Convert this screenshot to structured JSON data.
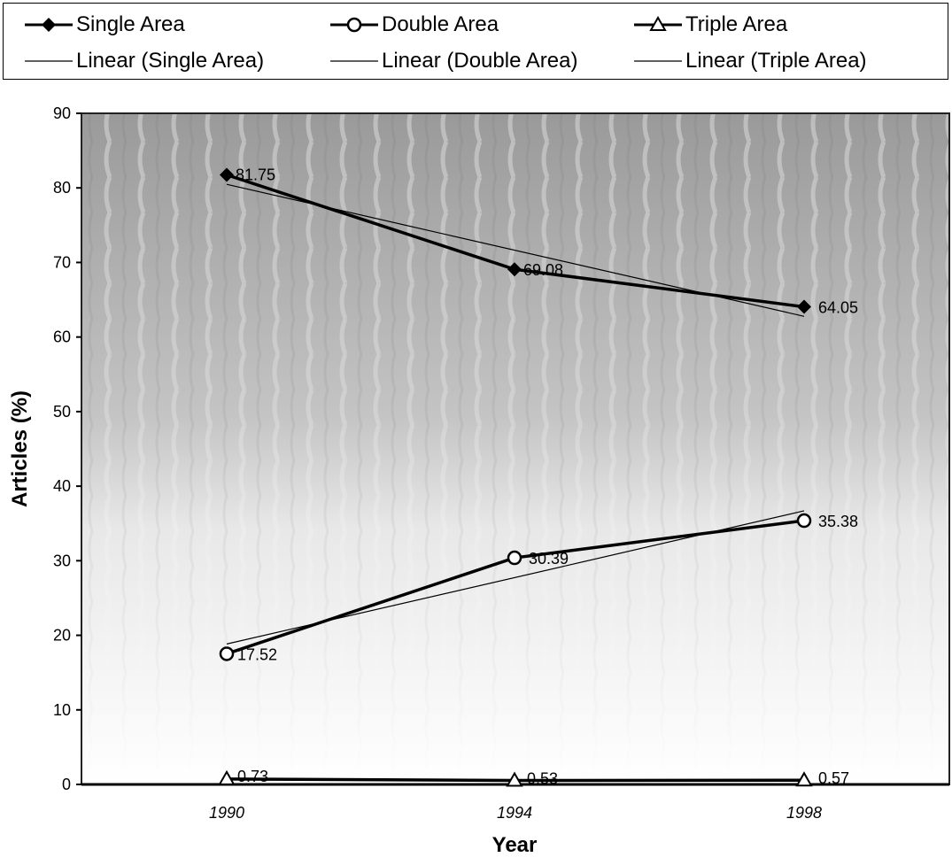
{
  "legend": {
    "items": [
      {
        "label": "Single Area",
        "marker": "diamond",
        "style": "series"
      },
      {
        "label": "Double Area",
        "marker": "circle",
        "style": "series"
      },
      {
        "label": "Triple Area",
        "marker": "triangle",
        "style": "series"
      },
      {
        "label": "Linear (Single Area)",
        "marker": "none",
        "style": "trend"
      },
      {
        "label": "Linear (Double Area)",
        "marker": "none",
        "style": "trend"
      },
      {
        "label": "Linear (Triple Area)",
        "marker": "none",
        "style": "trend"
      }
    ]
  },
  "chart_data": {
    "type": "line",
    "x": [
      "1990",
      "1994",
      "1998"
    ],
    "series": [
      {
        "name": "Single Area",
        "marker": "diamond",
        "values": [
          81.75,
          69.08,
          64.05
        ],
        "labels": [
          "81.75",
          "69.08",
          "64.05"
        ]
      },
      {
        "name": "Double Area",
        "marker": "circle",
        "values": [
          17.52,
          30.39,
          35.38
        ],
        "labels": [
          "17.52",
          "30.39",
          "35.38"
        ]
      },
      {
        "name": "Triple Area",
        "marker": "triangle",
        "values": [
          0.73,
          0.53,
          0.57
        ],
        "labels": [
          "0.73",
          "0.53",
          "0.57"
        ]
      }
    ],
    "trendlines": [
      {
        "name": "Linear (Single Area)",
        "type": "linear",
        "of": "Single Area"
      },
      {
        "name": "Linear (Double Area)",
        "type": "linear",
        "of": "Double Area"
      },
      {
        "name": "Linear (Triple Area)",
        "type": "linear",
        "of": "Triple Area"
      }
    ],
    "xlabel": "Year",
    "ylabel": "Articles (%)",
    "ylim": [
      0,
      90
    ],
    "yticks": [
      "0",
      "10",
      "20",
      "30",
      "40",
      "50",
      "60",
      "70",
      "80",
      "90"
    ],
    "legend_position": "top",
    "grid": false,
    "plot_background": "textured grey (scanned)",
    "colors": {
      "series": "#000000",
      "trend": "#000000",
      "plot_bg": "#bdbdbd"
    }
  }
}
